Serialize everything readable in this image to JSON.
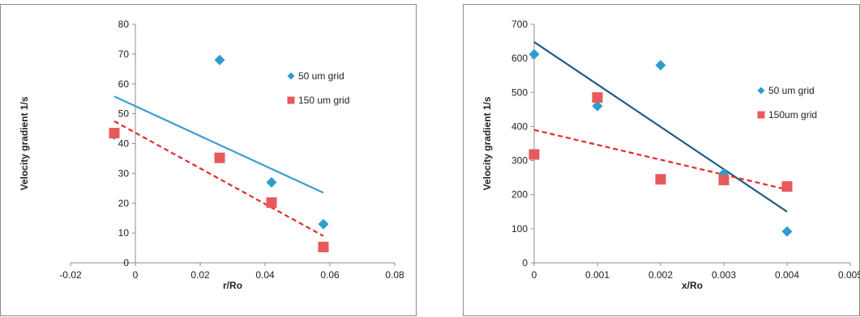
{
  "chart_data": [
    {
      "type": "scatter",
      "xlabel": "r/Ro",
      "ylabel": "Velocity gradient 1/s",
      "xlim": [
        -0.02,
        0.08
      ],
      "ylim": [
        0,
        80
      ],
      "xticks": [
        -0.02,
        0,
        0.02,
        0.04,
        0.06,
        0.08
      ],
      "xtick_labels": [
        "-0.02",
        "0",
        "0.02",
        "0.04",
        "0.06",
        "0.08"
      ],
      "yticks": [
        0,
        10,
        20,
        30,
        40,
        50,
        60,
        70,
        80
      ],
      "ytick_labels": [
        "0",
        "10",
        "20",
        "30",
        "40",
        "50",
        "60",
        "70",
        "80"
      ],
      "legend_position": "right",
      "grid": false,
      "series": [
        {
          "name": "50 um grid",
          "marker": "diamond",
          "color": "#2e9ccf",
          "x": [
            -0.0065,
            0.026,
            0.042,
            0.058
          ],
          "y": [
            43,
            68,
            27,
            13
          ],
          "trendline": {
            "style": "solid",
            "color": "#3aa0d0",
            "x": [
              -0.0065,
              0.058
            ],
            "y": [
              55.8,
              23.5
            ]
          }
        },
        {
          "name": "150 um grid",
          "marker": "square",
          "color": "#e8595c",
          "x": [
            -0.0065,
            0.026,
            0.042,
            0.058
          ],
          "y": [
            43.5,
            35.2,
            20.2,
            5.3
          ],
          "trendline": {
            "style": "dashed",
            "color": "#e32b2b",
            "x": [
              -0.0065,
              0.058
            ],
            "y": [
              47.5,
              9
            ]
          }
        }
      ]
    },
    {
      "type": "scatter",
      "xlabel": "x/Ro",
      "ylabel": "Velocity gradient 1/s",
      "xlim": [
        0,
        0.005
      ],
      "ylim": [
        0,
        700
      ],
      "xticks": [
        0,
        0.001,
        0.002,
        0.003,
        0.004,
        0.005
      ],
      "xtick_labels": [
        "0",
        "0.001",
        "0.002",
        "0.003",
        "0.004",
        "0.005"
      ],
      "yticks": [
        0,
        100,
        200,
        300,
        400,
        500,
        600,
        700
      ],
      "ytick_labels": [
        "0",
        "100",
        "200",
        "300",
        "400",
        "500",
        "600",
        "700"
      ],
      "legend_position": "right",
      "grid": false,
      "series": [
        {
          "name": "50 um grid",
          "marker": "diamond",
          "color": "#2e9ccf",
          "x": [
            0,
            0.001,
            0.002,
            0.003,
            0.004
          ],
          "y": [
            612,
            460,
            580,
            262,
            92
          ],
          "trendline": {
            "style": "solid",
            "color": "#1f5f86",
            "x": [
              0,
              0.004
            ],
            "y": [
              648,
              150
            ]
          }
        },
        {
          "name": "150um grid",
          "marker": "square",
          "color": "#e8595c",
          "x": [
            0,
            0.001,
            0.002,
            0.003,
            0.004
          ],
          "y": [
            318,
            485,
            245,
            243,
            224
          ],
          "trendline": {
            "style": "dashed",
            "color": "#e32b2b",
            "x": [
              0,
              0.004
            ],
            "y": [
              390,
              215
            ]
          }
        }
      ]
    }
  ]
}
